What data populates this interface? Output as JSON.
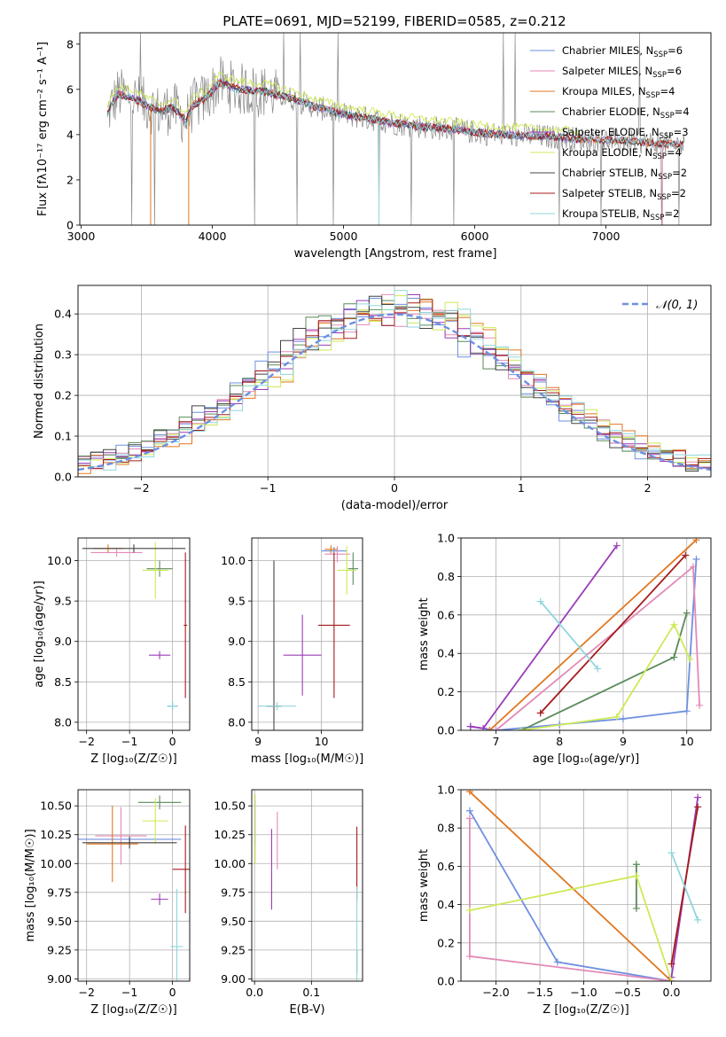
{
  "figure": {
    "title": "PLATE=0691, MJD=52199, FIBERID=0585, z=0.212"
  },
  "colors": {
    "chab_miles": "#6e8fe0",
    "salp_miles": "#e28ab7",
    "krou_miles": "#e0771f",
    "chab_elodie": "#5a8a5a",
    "salp_elodie": "#9b3bb8",
    "krou_elodie": "#cdea56",
    "chab_stelib": "#444444",
    "salp_stelib": "#a51b1b",
    "krou_stelib": "#8fd6dc",
    "data_gray": "#888888",
    "gauss": "#6e8fe0"
  },
  "chart_data": [
    {
      "id": "spectrum",
      "type": "line",
      "title": "PLATE=0691, MJD=52199, FIBERID=0585, z=0.212",
      "xlabel": "wavelength [Angstrom, rest frame]",
      "ylabel": "Flux [fλ10⁻¹⁷ erg cm⁻² s⁻¹ A⁻¹]",
      "xlim": [
        2990,
        7800
      ],
      "ylim": [
        0,
        8.5
      ],
      "xticks": [
        3000,
        4000,
        5000,
        6000,
        7000
      ],
      "yticks": [
        0,
        2,
        4,
        6,
        8
      ],
      "legend_position": "top-right",
      "legend": [
        {
          "label": "Chabrier MILES, N",
          "sub": "SSP",
          "tail": "=6",
          "color": "chab_miles"
        },
        {
          "label": "Salpeter MILES, N",
          "sub": "SSP",
          "tail": "=6",
          "color": "salp_miles"
        },
        {
          "label": "Kroupa MILES, N",
          "sub": "SSP",
          "tail": "=4",
          "color": "krou_miles"
        },
        {
          "label": "Chabrier ELODIE, N",
          "sub": "SSP",
          "tail": "=4",
          "color": "chab_elodie"
        },
        {
          "label": "Salpeter ELODIE, N",
          "sub": "SSP",
          "tail": "=3",
          "color": "salp_elodie"
        },
        {
          "label": "Kroupa ELODIE, N",
          "sub": "SSP",
          "tail": "=4",
          "color": "krou_elodie"
        },
        {
          "label": "Chabrier STELIB, N",
          "sub": "SSP",
          "tail": "=2",
          "color": "chab_stelib"
        },
        {
          "label": "Salpeter STELIB, N",
          "sub": "SSP",
          "tail": "=2",
          "color": "salp_stelib"
        },
        {
          "label": "Kroupa STELIB, N",
          "sub": "SSP",
          "tail": "=2",
          "color": "krou_stelib"
        }
      ],
      "model_continuum": {
        "x": [
          3200,
          3280,
          3400,
          3600,
          3700,
          3800,
          3850,
          3950,
          4050,
          4200,
          4400,
          4600,
          4800,
          5000,
          5200,
          5400,
          5600,
          5800,
          6000,
          6200,
          6400,
          6600,
          6800,
          7000,
          7200,
          7400,
          7600
        ],
        "y": [
          4.9,
          5.8,
          5.6,
          5.0,
          5.2,
          4.6,
          5.3,
          5.6,
          6.3,
          6.0,
          5.9,
          5.6,
          5.2,
          4.9,
          4.7,
          4.5,
          4.35,
          4.25,
          4.1,
          4.0,
          3.95,
          3.9,
          3.8,
          3.75,
          3.7,
          3.6,
          3.55
        ]
      }
    },
    {
      "id": "residuals",
      "type": "line",
      "xlabel": "(data-model)/error",
      "ylabel": "Normed distribution",
      "xlim": [
        -2.5,
        2.5
      ],
      "ylim": [
        0,
        0.47
      ],
      "xticks": [
        -2,
        -1,
        0,
        1,
        2
      ],
      "yticks": [
        0.0,
        0.1,
        0.2,
        0.3,
        0.4
      ],
      "legend_position": "top-right",
      "gauss_label": "𝒩(0, 1)"
    },
    {
      "id": "age_vs_Z",
      "type": "scatter",
      "xlabel": "Z [log₁₀(Z/Z☉)]",
      "ylabel": "age  [log₁₀(age/yr)]",
      "xlim": [
        -2.2,
        0.4
      ],
      "ylim": [
        7.9,
        10.28
      ],
      "xticks": [
        -2,
        -1,
        0
      ],
      "yticks": [
        8.0,
        8.5,
        9.0,
        9.5,
        10.0
      ],
      "points": [
        {
          "c": "chab_miles",
          "x": 0.0,
          "y": 8.2,
          "ex": 0.12,
          "ey": 0.05
        },
        {
          "c": "salp_miles",
          "x": -1.3,
          "y": 10.1,
          "ex": 0.6,
          "ey": 0.05
        },
        {
          "c": "krou_miles",
          "x": -1.5,
          "y": 10.15,
          "ex": 0.35,
          "ey": 0.05
        },
        {
          "c": "chab_elodie",
          "x": -0.3,
          "y": 9.9,
          "ex": 0.3,
          "ey": 0.1
        },
        {
          "c": "salp_elodie",
          "x": -0.3,
          "y": 8.83,
          "ex": 0.25,
          "ey": 0.05
        },
        {
          "c": "krou_elodie",
          "x": -0.4,
          "y": 9.88,
          "ex": 0.3,
          "ey": 0.35
        },
        {
          "c": "chab_stelib",
          "x": -0.9,
          "y": 10.15,
          "ex": 1.2,
          "ey": 0.05
        },
        {
          "c": "salp_stelib",
          "x": 0.3,
          "y": 9.2,
          "ex": 0.04,
          "ey": 0.9
        },
        {
          "c": "krou_stelib",
          "x": 0.0,
          "y": 8.2,
          "ex": 0.1,
          "ey": 0.05
        }
      ]
    },
    {
      "id": "age_vs_mass",
      "type": "scatter",
      "xlabel": "mass [log₁₀(M/M☉)]",
      "xlim": [
        8.9,
        10.65
      ],
      "ylim": [
        7.9,
        10.28
      ],
      "xticks": [
        9,
        10
      ],
      "yticks": [
        8.0,
        8.5,
        9.0,
        9.5,
        10.0
      ],
      "points": [
        {
          "c": "chab_miles",
          "x": 10.2,
          "y": 10.12,
          "ex": 0.2,
          "ey": 0.05
        },
        {
          "c": "salp_miles",
          "x": 10.25,
          "y": 10.08,
          "ex": 0.2,
          "ey": 0.1
        },
        {
          "c": "krou_miles",
          "x": 10.15,
          "y": 10.14,
          "ex": 0.1,
          "ey": 0.05
        },
        {
          "c": "chab_elodie",
          "x": 10.5,
          "y": 9.9,
          "ex": 0.08,
          "ey": 0.2
        },
        {
          "c": "salp_elodie",
          "x": 9.7,
          "y": 8.83,
          "ex": 0.3,
          "ey": 0.5
        },
        {
          "c": "krou_elodie",
          "x": 10.4,
          "y": 9.88,
          "ex": 0.15,
          "ey": 0.3
        },
        {
          "c": "chab_stelib",
          "x": 9.25,
          "y": 8.2,
          "ex": 0.12,
          "ey": 1.8
        },
        {
          "c": "salp_stelib",
          "x": 10.2,
          "y": 9.2,
          "ex": 0.25,
          "ey": 0.9
        },
        {
          "c": "krou_stelib",
          "x": 9.3,
          "y": 8.2,
          "ex": 0.3,
          "ey": 0.05
        }
      ]
    },
    {
      "id": "mass_weight_vs_age",
      "type": "line",
      "xlabel": "age  [log₁₀(age/yr)]",
      "ylabel": "mass weight",
      "xlim": [
        6.45,
        10.38
      ],
      "ylim": [
        0,
        1.0
      ],
      "xticks": [
        7,
        8,
        9,
        10
      ],
      "yticks": [
        0.0,
        0.2,
        0.4,
        0.6,
        0.8,
        1.0
      ],
      "series": [
        {
          "c": "chab_miles",
          "x": [
            6.6,
            7.0,
            8.0,
            9.0,
            10.0,
            10.15
          ],
          "y": [
            0.02,
            0.0,
            0.03,
            0.06,
            0.1,
            0.89
          ]
        },
        {
          "c": "salp_miles",
          "x": [
            7.0,
            10.1,
            10.2
          ],
          "y": [
            0.0,
            0.85,
            0.13
          ]
        },
        {
          "c": "krou_miles",
          "x": [
            6.9,
            10.15
          ],
          "y": [
            0.0,
            0.99
          ]
        },
        {
          "c": "chab_elodie",
          "x": [
            7.4,
            9.8,
            10.0
          ],
          "y": [
            0.0,
            0.38,
            0.61
          ]
        },
        {
          "c": "salp_elodie",
          "x": [
            6.6,
            6.8,
            8.9
          ],
          "y": [
            0.02,
            0.01,
            0.96
          ]
        },
        {
          "c": "krou_elodie",
          "x": [
            7.4,
            8.9,
            9.8,
            10.05
          ],
          "y": [
            0.0,
            0.07,
            0.55,
            0.37
          ]
        },
        {
          "c": "salp_stelib",
          "x": [
            7.7,
            9.98
          ],
          "y": [
            0.09,
            0.91
          ]
        },
        {
          "c": "krou_stelib",
          "x": [
            7.7,
            8.6
          ],
          "y": [
            0.67,
            0.32
          ]
        }
      ]
    },
    {
      "id": "mass_vs_Z",
      "type": "scatter",
      "xlabel": "Z [log₁₀(Z/Z☉)]",
      "ylabel": "mass [log₁₀(M/M☉)]",
      "xlim": [
        -2.2,
        0.4
      ],
      "ylim": [
        8.98,
        10.64
      ],
      "xticks": [
        -2,
        -1,
        0
      ],
      "yticks": [
        9.0,
        9.25,
        9.5,
        9.75,
        10.0,
        10.25,
        10.5
      ],
      "points": [
        {
          "c": "chab_miles",
          "x": -1.0,
          "y": 10.21,
          "ex": 1.2,
          "ey": 0.03
        },
        {
          "c": "salp_miles",
          "x": -1.2,
          "y": 10.24,
          "ex": 0.6,
          "ey": 0.25
        },
        {
          "c": "krou_miles",
          "x": -1.4,
          "y": 10.17,
          "ex": 0.6,
          "ey": 0.33
        },
        {
          "c": "chab_elodie",
          "x": -0.3,
          "y": 10.53,
          "ex": 0.5,
          "ey": 0.06
        },
        {
          "c": "salp_elodie",
          "x": -0.3,
          "y": 9.69,
          "ex": 0.2,
          "ey": 0.05
        },
        {
          "c": "krou_elodie",
          "x": -0.4,
          "y": 10.37,
          "ex": 0.3,
          "ey": 0.2
        },
        {
          "c": "chab_stelib",
          "x": -1.0,
          "y": 10.18,
          "ex": 1.1,
          "ey": 0.05
        },
        {
          "c": "salp_stelib",
          "x": 0.3,
          "y": 9.95,
          "ex": 0.3,
          "ey": 0.38
        },
        {
          "c": "krou_stelib",
          "x": 0.1,
          "y": 9.28,
          "ex": 0.15,
          "ey": 0.5
        }
      ]
    },
    {
      "id": "mass_vs_EBV",
      "type": "scatter",
      "xlabel": "E(B-V)",
      "xlim": [
        -0.005,
        0.19
      ],
      "ylim": [
        8.98,
        10.64
      ],
      "xticks": [
        0.0,
        0.1
      ],
      "yticks": [
        9.0,
        9.25,
        9.5,
        9.75,
        10.0,
        10.25,
        10.5
      ],
      "points": [
        {
          "c": "chab_miles",
          "x": 0.001,
          "y": 10.35,
          "ex": 0,
          "ey": 0.2
        },
        {
          "c": "salp_miles",
          "x": 0.04,
          "y": 10.2,
          "ex": 0,
          "ey": 0.25
        },
        {
          "c": "salp_elodie",
          "x": 0.03,
          "y": 9.95,
          "ex": 0,
          "ey": 0.35
        },
        {
          "c": "krou_elodie",
          "x": 0.001,
          "y": 10.3,
          "ex": 0,
          "ey": 0.3
        },
        {
          "c": "chab_stelib",
          "x": 0.18,
          "y": 9.15,
          "ex": 0,
          "ey": 0.1
        },
        {
          "c": "salp_stelib",
          "x": 0.18,
          "y": 10.0,
          "ex": 0,
          "ey": 0.32
        },
        {
          "c": "krou_stelib",
          "x": 0.18,
          "y": 9.3,
          "ex": 0,
          "ey": 0.5
        }
      ]
    },
    {
      "id": "mass_weight_vs_Z",
      "type": "line",
      "xlabel": "Z [log₁₀(Z/Z☉)]",
      "ylabel": "mass weight",
      "xlim": [
        -2.4,
        0.45
      ],
      "ylim": [
        0,
        1.0
      ],
      "xticks": [
        -2.0,
        -1.5,
        -1.0,
        -0.5,
        0.0
      ],
      "yticks": [
        0.0,
        0.2,
        0.4,
        0.6,
        0.8,
        1.0
      ],
      "series": [
        {
          "c": "chab_miles",
          "x": [
            -2.3,
            -1.3,
            0.0
          ],
          "y": [
            0.89,
            0.1,
            0.0
          ]
        },
        {
          "c": "salp_miles",
          "x": [
            -2.3,
            -2.3,
            0.0
          ],
          "y": [
            0.85,
            0.13,
            0.0
          ]
        },
        {
          "c": "krou_miles",
          "x": [
            -2.3,
            0.0
          ],
          "y": [
            0.99,
            0.0
          ]
        },
        {
          "c": "chab_elodie",
          "x": [
            -0.4,
            -0.4
          ],
          "y": [
            0.61,
            0.38
          ]
        },
        {
          "c": "salp_elodie",
          "x": [
            0.0,
            0.3
          ],
          "y": [
            0.02,
            0.96
          ]
        },
        {
          "c": "krou_elodie",
          "x": [
            -2.3,
            -0.4,
            0.0
          ],
          "y": [
            0.37,
            0.55,
            0.0
          ]
        },
        {
          "c": "salp_stelib",
          "x": [
            0.0,
            0.3
          ],
          "y": [
            0.09,
            0.91
          ]
        },
        {
          "c": "krou_stelib",
          "x": [
            0.0,
            0.3
          ],
          "y": [
            0.67,
            0.32
          ]
        }
      ]
    }
  ]
}
